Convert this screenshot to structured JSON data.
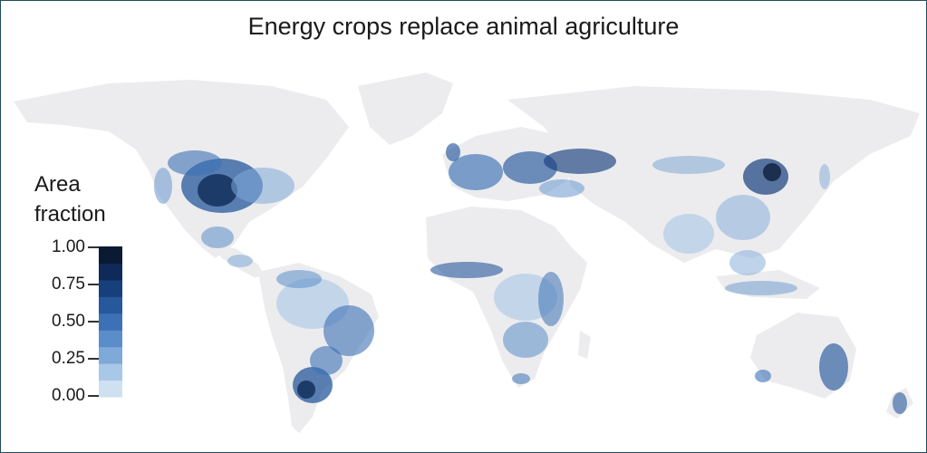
{
  "title": "Energy crops replace animal agriculture",
  "legend": {
    "title_line1": "Area",
    "title_line2": "fraction",
    "ticks": [
      "1.00",
      "0.75",
      "0.50",
      "0.25",
      "0.00"
    ],
    "scale": [
      "#cfe0f0",
      "#a9c7e6",
      "#7fa9d8",
      "#5b8ec9",
      "#3c72b5",
      "#27589c",
      "#173f7c",
      "#0f2a58",
      "#0a1a33"
    ]
  },
  "colors": {
    "land": "#ececee",
    "frame": "#1f4d5c"
  }
}
